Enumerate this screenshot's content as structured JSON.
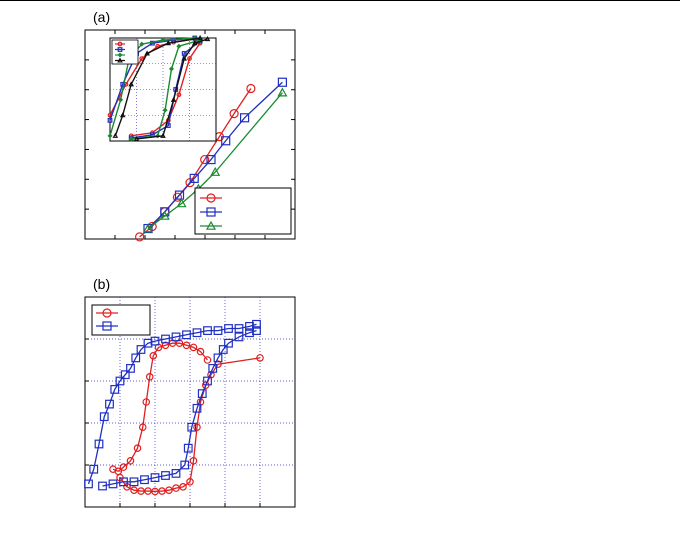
{
  "colors": {
    "red": "#e02020",
    "blue": "#2030c0",
    "green": "#1a8a30",
    "black": "#111111",
    "grid": "#2a2ad0"
  },
  "chart_data": [
    {
      "panel": "(a)",
      "type": "line",
      "xlim": [
        0,
        10
      ],
      "ylim": [
        0,
        10
      ],
      "grid": false,
      "legend": "bottom-right",
      "series": [
        {
          "color": "#e02020",
          "marker": "circle",
          "x": [
            2.6,
            3.2,
            3.8,
            4.4,
            5.0,
            5.7,
            6.4,
            7.1,
            7.9
          ],
          "y": [
            0.1,
            0.6,
            1.3,
            2.0,
            2.7,
            3.8,
            4.9,
            6.0,
            7.2
          ]
        },
        {
          "color": "#2030c0",
          "marker": "square",
          "x": [
            3.0,
            3.8,
            4.5,
            5.2,
            6.0,
            6.7,
            7.6,
            9.4
          ],
          "y": [
            0.5,
            1.3,
            2.1,
            2.9,
            3.8,
            4.7,
            5.8,
            7.5
          ]
        },
        {
          "color": "#1a8a30",
          "marker": "triangle",
          "x": [
            3.0,
            3.8,
            4.6,
            5.4,
            6.2,
            9.4
          ],
          "y": [
            0.5,
            1.1,
            1.7,
            2.4,
            3.2,
            7.0
          ]
        }
      ],
      "inset": {
        "type": "line",
        "grid": true,
        "legend": "top-left",
        "series": [
          {
            "color": "#e02020",
            "marker": "circle",
            "upper": [
              [
                0.0,
                0.25
              ],
              [
                0.15,
                0.55
              ],
              [
                0.3,
                0.8
              ],
              [
                0.45,
                0.92
              ],
              [
                0.6,
                0.96
              ],
              [
                0.8,
                0.99
              ]
            ],
            "lower": [
              [
                0.2,
                0.05
              ],
              [
                0.4,
                0.08
              ],
              [
                0.55,
                0.2
              ],
              [
                0.65,
                0.45
              ],
              [
                0.75,
                0.8
              ],
              [
                0.85,
                0.95
              ]
            ]
          },
          {
            "color": "#2030c0",
            "marker": "square",
            "upper": [
              [
                0.0,
                0.2
              ],
              [
                0.12,
                0.55
              ],
              [
                0.25,
                0.85
              ],
              [
                0.4,
                0.95
              ],
              [
                0.6,
                0.98
              ],
              [
                0.8,
                1.0
              ]
            ],
            "lower": [
              [
                0.2,
                0.03
              ],
              [
                0.4,
                0.06
              ],
              [
                0.55,
                0.15
              ],
              [
                0.62,
                0.5
              ],
              [
                0.7,
                0.85
              ],
              [
                0.85,
                0.97
              ]
            ]
          },
          {
            "color": "#1a8a30",
            "marker": "diamond",
            "upper": [
              [
                0.0,
                0.05
              ],
              [
                0.1,
                0.4
              ],
              [
                0.18,
                0.8
              ],
              [
                0.3,
                0.94
              ],
              [
                0.5,
                0.98
              ],
              [
                0.8,
                1.0
              ]
            ],
            "lower": [
              [
                0.2,
                0.02
              ],
              [
                0.45,
                0.05
              ],
              [
                0.52,
                0.3
              ],
              [
                0.58,
                0.7
              ],
              [
                0.65,
                0.92
              ],
              [
                0.85,
                0.98
              ]
            ]
          },
          {
            "color": "#111111",
            "marker": "triangle",
            "upper": [
              [
                0.05,
                0.05
              ],
              [
                0.12,
                0.25
              ],
              [
                0.2,
                0.55
              ],
              [
                0.35,
                0.85
              ],
              [
                0.55,
                0.95
              ],
              [
                0.85,
                1.0
              ]
            ],
            "lower": [
              [
                0.25,
                0.02
              ],
              [
                0.5,
                0.05
              ],
              [
                0.6,
                0.4
              ],
              [
                0.7,
                0.8
              ],
              [
                0.8,
                0.95
              ],
              [
                0.92,
                0.99
              ]
            ]
          }
        ]
      }
    },
    {
      "panel": "(b)",
      "type": "line",
      "xlim": [
        0,
        6
      ],
      "ylim": [
        0,
        5
      ],
      "grid": true,
      "legend": "top-left",
      "series": [
        {
          "color": "#e02020",
          "marker": "circle",
          "upper": [
            [
              0.8,
              0.9
            ],
            [
              0.95,
              0.85
            ],
            [
              1.1,
              0.95
            ],
            [
              1.3,
              1.1
            ],
            [
              1.5,
              1.4
            ],
            [
              1.65,
              1.9
            ],
            [
              1.75,
              2.5
            ],
            [
              1.85,
              3.1
            ],
            [
              1.95,
              3.6
            ],
            [
              2.1,
              3.8
            ],
            [
              2.3,
              3.85
            ],
            [
              2.5,
              3.9
            ],
            [
              2.7,
              3.9
            ],
            [
              2.9,
              3.85
            ],
            [
              3.1,
              3.8
            ],
            [
              3.3,
              3.7
            ],
            [
              3.5,
              3.5
            ]
          ],
          "lower": [
            [
              1.0,
              0.7
            ],
            [
              1.2,
              0.48
            ],
            [
              1.4,
              0.4
            ],
            [
              1.6,
              0.38
            ],
            [
              1.8,
              0.38
            ],
            [
              2.0,
              0.37
            ],
            [
              2.2,
              0.38
            ],
            [
              2.4,
              0.4
            ],
            [
              2.6,
              0.45
            ],
            [
              2.8,
              0.48
            ],
            [
              3.0,
              0.6
            ],
            [
              3.1,
              1.1
            ],
            [
              3.2,
              1.9
            ],
            [
              3.3,
              2.5
            ],
            [
              3.45,
              2.9
            ],
            [
              3.6,
              3.15
            ],
            [
              3.8,
              3.4
            ],
            [
              5.0,
              3.55
            ]
          ]
        },
        {
          "color": "#2030c0",
          "marker": "square",
          "upper": [
            [
              0.1,
              0.55
            ],
            [
              0.25,
              0.9
            ],
            [
              0.4,
              1.5
            ],
            [
              0.55,
              2.15
            ],
            [
              0.7,
              2.45
            ],
            [
              0.85,
              2.8
            ],
            [
              1.0,
              3.0
            ],
            [
              1.15,
              3.15
            ],
            [
              1.3,
              3.3
            ],
            [
              1.45,
              3.55
            ],
            [
              1.6,
              3.75
            ],
            [
              1.8,
              3.9
            ],
            [
              2.0,
              3.95
            ],
            [
              2.3,
              4.0
            ],
            [
              2.6,
              4.05
            ],
            [
              2.9,
              4.1
            ],
            [
              3.2,
              4.15
            ],
            [
              3.5,
              4.2
            ],
            [
              3.8,
              4.2
            ],
            [
              4.1,
              4.25
            ],
            [
              4.4,
              4.25
            ],
            [
              4.7,
              4.3
            ],
            [
              4.9,
              4.35
            ]
          ],
          "lower": [
            [
              0.5,
              0.5
            ],
            [
              0.8,
              0.55
            ],
            [
              1.1,
              0.6
            ],
            [
              1.4,
              0.6
            ],
            [
              1.7,
              0.65
            ],
            [
              2.0,
              0.7
            ],
            [
              2.3,
              0.75
            ],
            [
              2.6,
              0.8
            ],
            [
              2.85,
              1.0
            ],
            [
              2.95,
              1.4
            ],
            [
              3.05,
              1.9
            ],
            [
              3.2,
              2.35
            ],
            [
              3.35,
              2.7
            ],
            [
              3.5,
              3.0
            ],
            [
              3.65,
              3.3
            ],
            [
              3.8,
              3.55
            ],
            [
              3.95,
              3.75
            ],
            [
              4.1,
              3.9
            ],
            [
              4.4,
              4.05
            ],
            [
              4.7,
              4.15
            ],
            [
              4.9,
              4.2
            ]
          ]
        }
      ]
    }
  ]
}
